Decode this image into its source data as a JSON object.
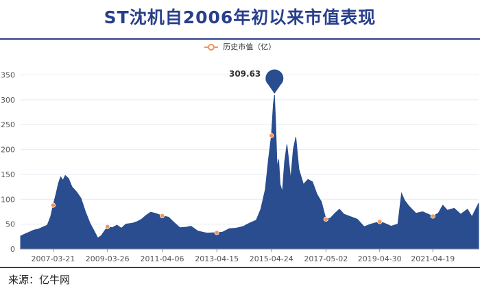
{
  "page": {
    "title": "ST沈机自2006年初以来市值表现",
    "source": "来源：亿牛网"
  },
  "colors": {
    "title": "#283f8a",
    "rule": "#2b3e84",
    "series": "#2a4d8f",
    "marker": "#f0955c",
    "grid": "#e6e9f0",
    "axis": "#555555"
  },
  "chart_data": {
    "type": "area",
    "legend": [
      "历史市值（亿）"
    ],
    "legend_position": "top-center",
    "grid": true,
    "ylim": [
      0,
      370
    ],
    "yticks": [
      0,
      50,
      100,
      150,
      200,
      250,
      300,
      350
    ],
    "xlim": [
      "2006-01-04",
      "2022-12-30"
    ],
    "xtick_labels": [
      "2007-03-21",
      "2009-03-26",
      "2011-04-06",
      "2013-04-15",
      "2015-04-24",
      "2017-05-02",
      "2019-04-30",
      "2021-04-19"
    ],
    "series": [
      {
        "name": "历史市值（亿）",
        "points": [
          [
            "2006-01-04",
            26
          ],
          [
            "2006-03-01",
            30
          ],
          [
            "2006-05-01",
            34
          ],
          [
            "2006-07-01",
            38
          ],
          [
            "2006-09-01",
            40
          ],
          [
            "2006-11-01",
            44
          ],
          [
            "2007-01-01",
            48
          ],
          [
            "2007-02-15",
            65
          ],
          [
            "2007-03-21",
            88
          ],
          [
            "2007-05-01",
            112
          ],
          [
            "2007-06-01",
            132
          ],
          [
            "2007-07-01",
            145
          ],
          [
            "2007-08-01",
            138
          ],
          [
            "2007-09-01",
            148
          ],
          [
            "2007-10-15",
            142
          ],
          [
            "2007-12-01",
            125
          ],
          [
            "2008-02-01",
            115
          ],
          [
            "2008-04-01",
            102
          ],
          [
            "2008-06-01",
            75
          ],
          [
            "2008-08-01",
            52
          ],
          [
            "2008-10-01",
            35
          ],
          [
            "2008-11-15",
            22
          ],
          [
            "2009-01-01",
            27
          ],
          [
            "2009-03-26",
            45
          ],
          [
            "2009-06-01",
            43
          ],
          [
            "2009-08-01",
            48
          ],
          [
            "2009-10-01",
            42
          ],
          [
            "2009-12-01",
            50
          ],
          [
            "2010-03-01",
            52
          ],
          [
            "2010-05-01",
            55
          ],
          [
            "2010-07-01",
            60
          ],
          [
            "2010-09-01",
            68
          ],
          [
            "2010-11-01",
            74
          ],
          [
            "2011-01-01",
            72
          ],
          [
            "2011-04-06",
            67
          ],
          [
            "2011-07-01",
            64
          ],
          [
            "2011-09-01",
            55
          ],
          [
            "2011-12-01",
            43
          ],
          [
            "2012-03-01",
            44
          ],
          [
            "2012-05-01",
            46
          ],
          [
            "2012-08-01",
            36
          ],
          [
            "2012-12-01",
            32
          ],
          [
            "2013-04-15",
            33
          ],
          [
            "2013-07-01",
            34
          ],
          [
            "2013-10-01",
            41
          ],
          [
            "2014-01-01",
            42
          ],
          [
            "2014-04-01",
            45
          ],
          [
            "2014-07-01",
            52
          ],
          [
            "2014-10-01",
            58
          ],
          [
            "2014-12-01",
            80
          ],
          [
            "2015-02-01",
            120
          ],
          [
            "2015-03-15",
            180
          ],
          [
            "2015-04-24",
            228
          ],
          [
            "2015-05-20",
            290
          ],
          [
            "2015-06-05",
            309.63
          ],
          [
            "2015-06-20",
            255
          ],
          [
            "2015-07-10",
            165
          ],
          [
            "2015-08-01",
            180
          ],
          [
            "2015-08-20",
            130
          ],
          [
            "2015-09-20",
            115
          ],
          [
            "2015-10-20",
            175
          ],
          [
            "2015-11-20",
            210
          ],
          [
            "2015-12-10",
            185
          ],
          [
            "2016-01-10",
            140
          ],
          [
            "2016-02-15",
            200
          ],
          [
            "2016-03-20",
            225
          ],
          [
            "2016-05-01",
            160
          ],
          [
            "2016-07-01",
            130
          ],
          [
            "2016-09-01",
            140
          ],
          [
            "2016-11-01",
            135
          ],
          [
            "2017-01-01",
            110
          ],
          [
            "2017-03-01",
            95
          ],
          [
            "2017-05-02",
            60
          ],
          [
            "2017-07-01",
            62
          ],
          [
            "2017-09-01",
            72
          ],
          [
            "2017-11-01",
            80
          ],
          [
            "2018-01-01",
            70
          ],
          [
            "2018-04-01",
            65
          ],
          [
            "2018-07-01",
            60
          ],
          [
            "2018-10-01",
            45
          ],
          [
            "2019-01-01",
            50
          ],
          [
            "2019-04-30",
            55
          ],
          [
            "2019-07-01",
            52
          ],
          [
            "2019-10-01",
            46
          ],
          [
            "2020-01-01",
            50
          ],
          [
            "2020-02-20",
            112
          ],
          [
            "2020-04-01",
            98
          ],
          [
            "2020-06-01",
            86
          ],
          [
            "2020-09-01",
            72
          ],
          [
            "2020-12-01",
            75
          ],
          [
            "2021-04-19",
            66
          ],
          [
            "2021-07-01",
            72
          ],
          [
            "2021-09-01",
            88
          ],
          [
            "2021-11-01",
            78
          ],
          [
            "2022-02-01",
            82
          ],
          [
            "2022-05-01",
            70
          ],
          [
            "2022-08-01",
            80
          ],
          [
            "2022-10-01",
            65
          ],
          [
            "2022-12-30",
            92
          ]
        ]
      }
    ],
    "markers": [
      {
        "date": "2007-03-21",
        "value": 88
      },
      {
        "date": "2009-03-26",
        "value": 45
      },
      {
        "date": "2011-04-06",
        "value": 67
      },
      {
        "date": "2013-04-15",
        "value": 33
      },
      {
        "date": "2015-04-24",
        "value": 228
      },
      {
        "date": "2017-05-02",
        "value": 60
      },
      {
        "date": "2019-04-30",
        "value": 55
      },
      {
        "date": "2021-04-19",
        "value": 66
      }
    ],
    "max_callout": {
      "date": "2015-06-05",
      "value": 309.63,
      "label": "309.63"
    }
  }
}
